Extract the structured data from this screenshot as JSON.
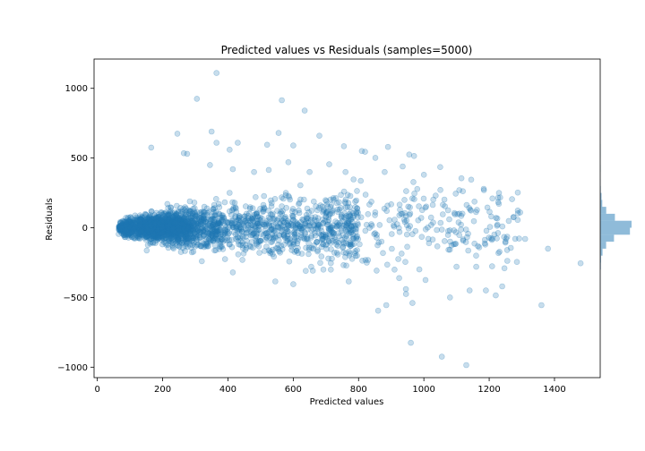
{
  "chart_data": {
    "type": "scatter",
    "title": "Predicted values vs Residuals (samples=5000)",
    "xlabel": "Predicted values",
    "ylabel": "Residuals",
    "xlim": [
      -10,
      1540
    ],
    "ylim": [
      -1075,
      1210
    ],
    "x_ticks": [
      0,
      200,
      400,
      600,
      800,
      1000,
      1200,
      1400
    ],
    "y_ticks": [
      -1000,
      -500,
      0,
      500,
      1000
    ],
    "x_tick_labels": [
      "0",
      "200",
      "400",
      "600",
      "800",
      "1000",
      "1200",
      "1400"
    ],
    "y_tick_labels": [
      "−1000",
      "−500",
      "0",
      "500",
      "1000"
    ],
    "grid": false,
    "marker_color": "#1f77b4",
    "marker_alpha": 0.25,
    "outliers": [
      [
        365,
        1110
      ],
      [
        305,
        925
      ],
      [
        565,
        915
      ],
      [
        635,
        840
      ],
      [
        245,
        675
      ],
      [
        350,
        690
      ],
      [
        555,
        680
      ],
      [
        365,
        610
      ],
      [
        405,
        560
      ],
      [
        430,
        610
      ],
      [
        520,
        595
      ],
      [
        600,
        590
      ],
      [
        680,
        660
      ],
      [
        165,
        575
      ],
      [
        265,
        535
      ],
      [
        275,
        530
      ],
      [
        755,
        585
      ],
      [
        810,
        550
      ],
      [
        820,
        545
      ],
      [
        890,
        580
      ],
      [
        955,
        525
      ],
      [
        970,
        515
      ],
      [
        345,
        450
      ],
      [
        415,
        420
      ],
      [
        480,
        400
      ],
      [
        525,
        415
      ],
      [
        585,
        470
      ],
      [
        650,
        400
      ],
      [
        710,
        455
      ],
      [
        760,
        400
      ],
      [
        880,
        400
      ],
      [
        935,
        440
      ],
      [
        1000,
        380
      ],
      [
        1050,
        435
      ],
      [
        1115,
        355
      ],
      [
        1145,
        345
      ],
      [
        1210,
        210
      ],
      [
        1230,
        250
      ],
      [
        1270,
        205
      ],
      [
        1295,
        110
      ],
      [
        1310,
        -80
      ],
      [
        1380,
        -150
      ],
      [
        1480,
        -255
      ],
      [
        1360,
        -555
      ],
      [
        960,
        -825
      ],
      [
        1055,
        -925
      ],
      [
        1130,
        -985
      ],
      [
        860,
        -595
      ],
      [
        885,
        -555
      ],
      [
        965,
        -540
      ],
      [
        1140,
        -450
      ],
      [
        1190,
        -450
      ],
      [
        1220,
        -485
      ],
      [
        1240,
        -420
      ],
      [
        1080,
        -500
      ],
      [
        1005,
        -375
      ],
      [
        910,
        -300
      ],
      [
        770,
        -385
      ],
      [
        600,
        -405
      ],
      [
        545,
        -385
      ],
      [
        415,
        -320
      ],
      [
        320,
        -240
      ],
      [
        1285,
        -245
      ],
      [
        1255,
        -160
      ],
      [
        1160,
        -200
      ],
      [
        1100,
        -280
      ],
      [
        715,
        -300
      ],
      [
        655,
        -280
      ],
      [
        825,
        -250
      ],
      [
        945,
        -440
      ]
    ]
  }
}
